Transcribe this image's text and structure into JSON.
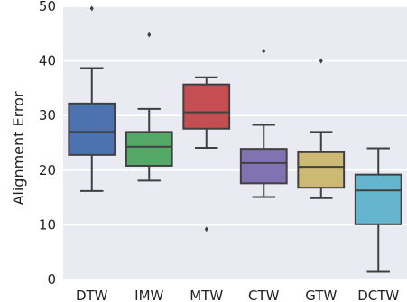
{
  "chart_data": {
    "type": "box",
    "title": "",
    "xlabel": "",
    "ylabel": "Alignment Error",
    "ylim": [
      0,
      50
    ],
    "yticks": [
      0,
      10,
      20,
      30,
      40,
      50
    ],
    "grid": "horizontal",
    "legend": "none",
    "categories": [
      "DTW",
      "IMW",
      "MTW",
      "CTW",
      "GTW",
      "DCTW"
    ],
    "boxes": [
      {
        "category": "DTW",
        "color": "#4c72b0",
        "whisker_low": 16.2,
        "q1": 22.8,
        "median": 27.0,
        "q3": 32.2,
        "whisker_high": 38.7,
        "outliers": [
          49.6
        ]
      },
      {
        "category": "IMW",
        "color": "#55a868",
        "whisker_low": 18.1,
        "q1": 20.8,
        "median": 24.3,
        "q3": 27.0,
        "whisker_high": 31.2,
        "outliers": [
          44.8
        ]
      },
      {
        "category": "MTW",
        "color": "#c44e52",
        "whisker_low": 24.1,
        "q1": 27.6,
        "median": 30.6,
        "q3": 35.7,
        "whisker_high": 37.0,
        "outliers": [
          9.2
        ]
      },
      {
        "category": "CTW",
        "color": "#8172b2",
        "whisker_low": 15.1,
        "q1": 17.6,
        "median": 21.3,
        "q3": 23.9,
        "whisker_high": 28.3,
        "outliers": [
          41.8
        ]
      },
      {
        "category": "GTW",
        "color": "#ccb974",
        "whisker_low": 14.9,
        "q1": 16.8,
        "median": 20.6,
        "q3": 23.3,
        "whisker_high": 27.0,
        "outliers": [
          40.0
        ]
      },
      {
        "category": "DCTW",
        "color": "#64b5cd",
        "whisker_low": 1.4,
        "q1": 10.1,
        "median": 16.3,
        "q3": 19.2,
        "whisker_high": 24.0,
        "outliers": []
      }
    ],
    "colors": {
      "background": "#eaeaf2",
      "grid": "#ffffff",
      "line": "#404040"
    }
  }
}
